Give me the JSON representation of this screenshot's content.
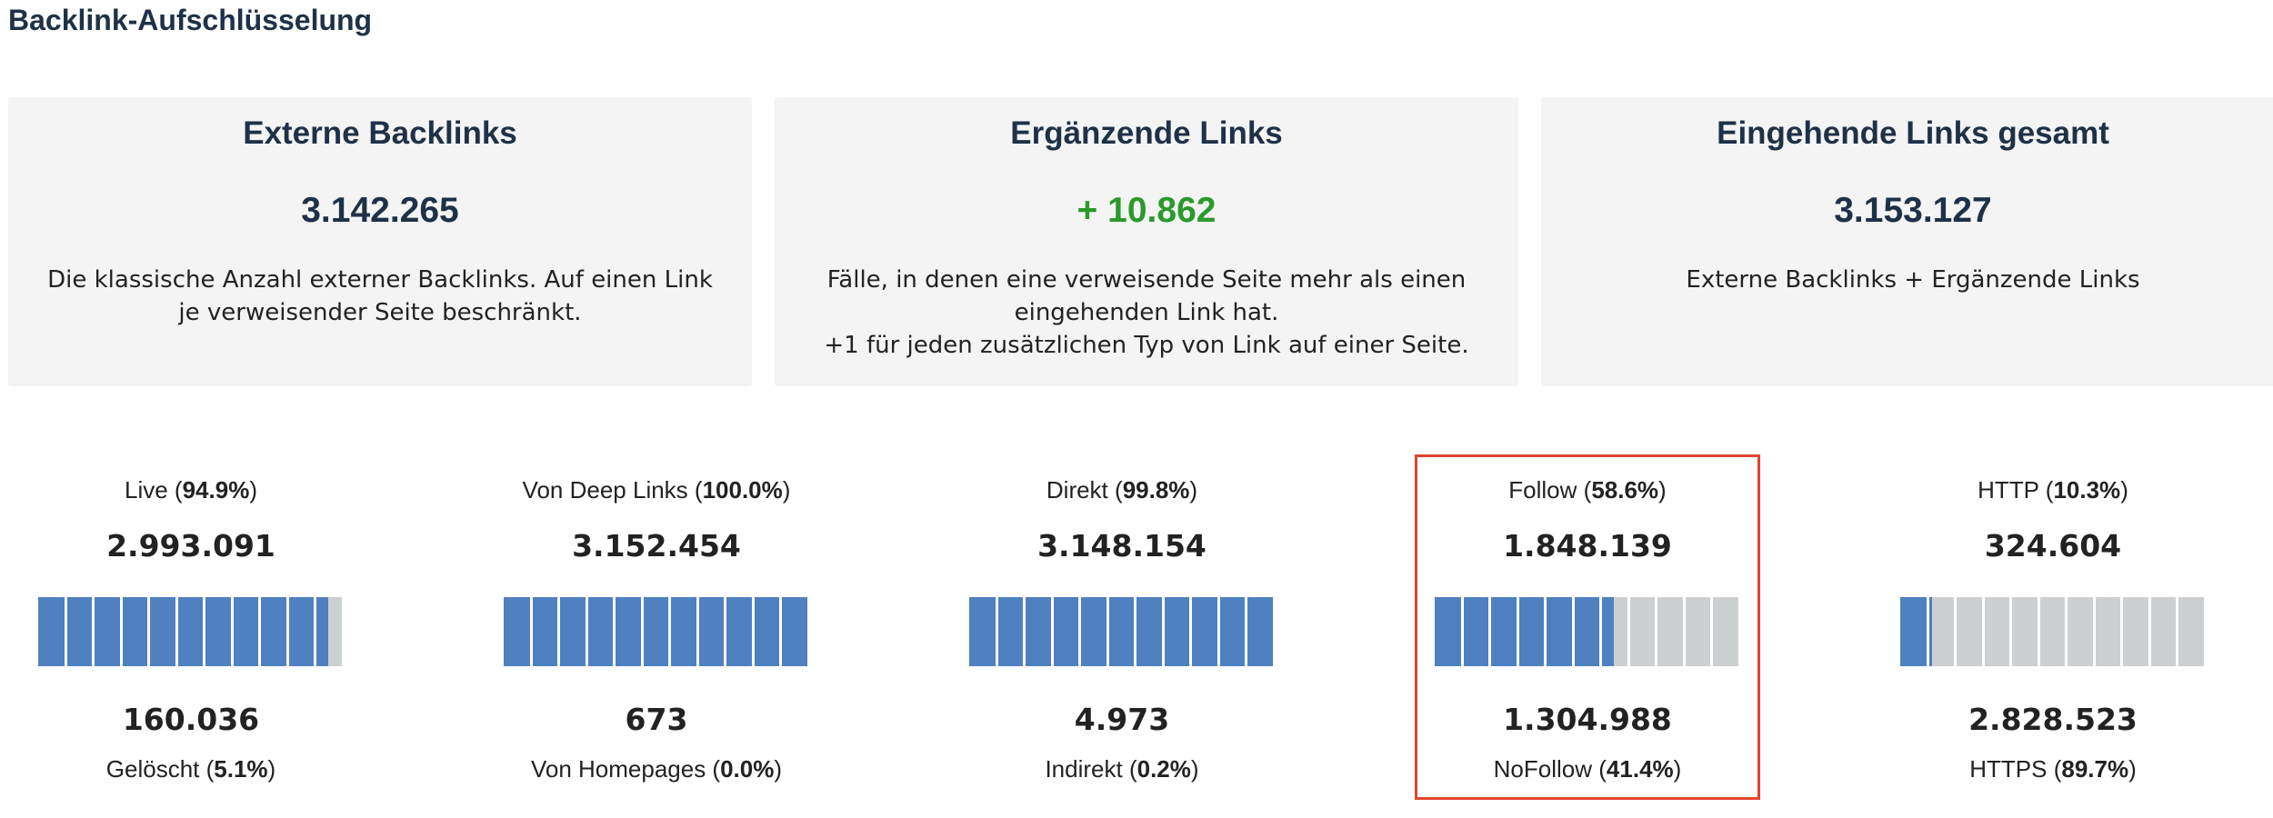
{
  "page_title": "Backlink-Aufschlüsselung",
  "summary_cards": [
    {
      "title": "Externe Backlinks",
      "value": "3.142.265",
      "description_lines": [
        "Die klassische Anzahl externer Backlinks. Auf einen Link",
        "je verweisender Seite beschränkt."
      ]
    },
    {
      "title": "Ergänzende Links",
      "value": "+ 10.862",
      "value_color": "#2a9a2a",
      "description_lines": [
        "Fälle, in denen eine verweisende Seite mehr als einen",
        "eingehenden Link hat.",
        "+1 für jeden zusätzlichen Typ von Link auf einer Seite."
      ]
    },
    {
      "title": "Eingehende Links gesamt",
      "value": "3.153.127",
      "description_lines": [
        "Externe Backlinks + Ergänzende Links"
      ]
    }
  ],
  "metrics": [
    {
      "top_label": "Live",
      "top_pct": "94.9%",
      "top_value": "2.993.091",
      "bottom_value": "160.036",
      "bottom_label": "Gelöscht",
      "bottom_pct": "5.1%",
      "fill_fraction": 0.949,
      "highlighted": false
    },
    {
      "top_label": "Von Deep Links",
      "top_pct": "100.0%",
      "top_value": "3.152.454",
      "bottom_value": "673",
      "bottom_label": "Von Homepages",
      "bottom_pct": "0.0%",
      "fill_fraction": 1.0,
      "highlighted": false
    },
    {
      "top_label": "Direkt",
      "top_pct": "99.8%",
      "top_value": "3.148.154",
      "bottom_value": "4.973",
      "bottom_label": "Indirekt",
      "bottom_pct": "0.2%",
      "fill_fraction": 0.998,
      "highlighted": false
    },
    {
      "top_label": "Follow",
      "top_pct": "58.6%",
      "top_value": "1.848.139",
      "bottom_value": "1.304.988",
      "bottom_label": "NoFollow",
      "bottom_pct": "41.4%",
      "fill_fraction": 0.586,
      "highlighted": true
    },
    {
      "top_label": "HTTP",
      "top_pct": "10.3%",
      "top_value": "324.604",
      "bottom_value": "2.828.523",
      "bottom_label": "HTTPS",
      "bottom_pct": "89.7%",
      "fill_fraction": 0.103,
      "highlighted": false
    }
  ],
  "colors": {
    "accent_green": "#2a9a2a",
    "bar_fill": "#4f80c0",
    "bar_empty": "#cdd0d1",
    "highlight_border": "#e2452e",
    "title_color": "#1f3147"
  }
}
